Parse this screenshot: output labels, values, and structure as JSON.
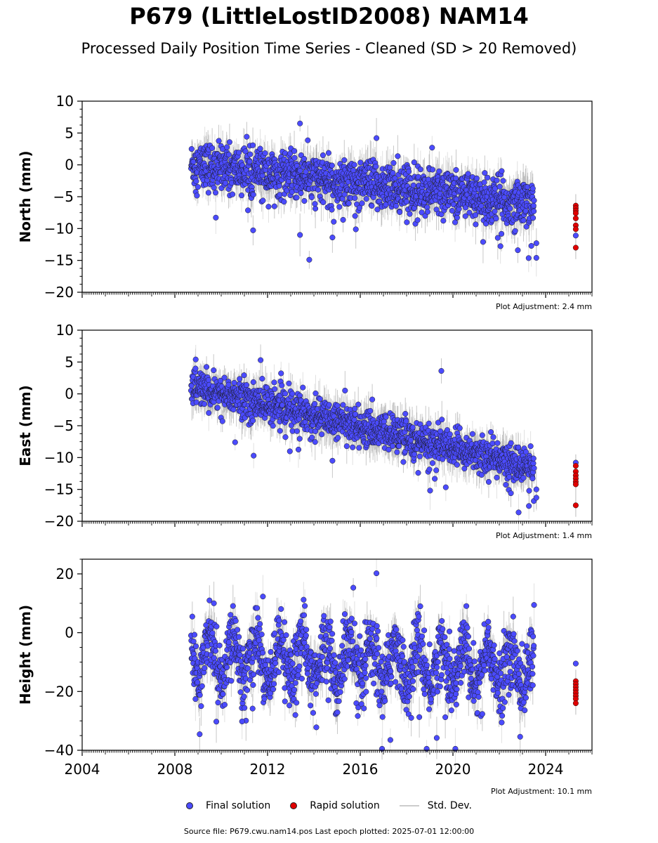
{
  "title": "P679 (LittleLostID2008) NAM14",
  "subtitle": "Processed Daily Position Time Series - Cleaned (SD > 20 Removed)",
  "legend": {
    "final": "Final solution",
    "rapid": "Rapid solution",
    "stddev": "Std. Dev."
  },
  "colors": {
    "final": "#4b4bff",
    "rapid": "#e00000",
    "stddev": "#c8c8c8",
    "edge": "#1a1a1a"
  },
  "source": "Source file: P679.cwu.nam14.pos  Last epoch plotted: 2025-07-01 12:00:00",
  "chart_data": [
    {
      "type": "scatter",
      "panel": "north",
      "ylabel": "North (mm)",
      "ylim": [
        -20,
        10
      ],
      "yticks": [
        -20,
        -15,
        -10,
        -5,
        0,
        5,
        10
      ],
      "xlim": [
        2004,
        2026
      ],
      "xticks": [
        2004,
        2008,
        2012,
        2016,
        2020,
        2024
      ],
      "show_xtick_labels": false,
      "annotation": "Plot Adjustment: 2.4 mm",
      "final": {
        "name": "Final solution",
        "x_start": 2008.7,
        "x_end": 2023.5,
        "y_start": 0.0,
        "y_end": -6.0,
        "scatter": 1.8,
        "outliers": [
          [
            2013.4,
            6.5
          ],
          [
            2013.8,
            -14.9
          ],
          [
            2013.4,
            -11.0
          ],
          [
            2014.8,
            -11.4
          ],
          [
            2016.7,
            4.2
          ],
          [
            2022.8,
            -13.4
          ],
          [
            2023.6,
            -14.6
          ],
          [
            2021.3,
            -12.1
          ],
          [
            2019.1,
            2.7
          ],
          [
            2023.6,
            -12.3
          ]
        ]
      },
      "rapid": {
        "name": "Rapid solution",
        "x": 2025.3,
        "y": [
          -6.4,
          -6.8,
          -7.2,
          -7.6,
          -8.4,
          -9.5,
          -10.1,
          -13.0
        ]
      },
      "rapid_final_point": [
        2025.3,
        -11.1
      ]
    },
    {
      "type": "scatter",
      "panel": "east",
      "ylabel": "East (mm)",
      "ylim": [
        -20,
        10
      ],
      "yticks": [
        -20,
        -15,
        -10,
        -5,
        0,
        5,
        10
      ],
      "xlim": [
        2004,
        2026
      ],
      "xticks": [
        2004,
        2008,
        2012,
        2016,
        2020,
        2024
      ],
      "show_xtick_labels": false,
      "annotation": "Plot Adjustment: 1.4 mm",
      "final": {
        "name": "Final solution",
        "x_start": 2008.7,
        "x_end": 2023.5,
        "y_start": 1.2,
        "y_end": -11.5,
        "scatter": 1.4,
        "outliers": [
          [
            2008.9,
            5.4
          ],
          [
            2011.7,
            5.3
          ],
          [
            2019.5,
            3.6
          ],
          [
            2010.6,
            -7.6
          ],
          [
            2011.4,
            -9.7
          ],
          [
            2014.8,
            -10.5
          ],
          [
            2018.5,
            -12.4
          ],
          [
            2023.6,
            -16.3
          ],
          [
            2023.6,
            -15.0
          ],
          [
            2022.5,
            -15.6
          ]
        ]
      },
      "rapid": {
        "name": "Rapid solution",
        "x": 2025.3,
        "y": [
          -11.3,
          -12.2,
          -12.8,
          -13.3,
          -13.8,
          -14.2,
          -17.5
        ]
      },
      "rapid_final_point": [
        2025.3,
        -10.8
      ]
    },
    {
      "type": "scatter",
      "panel": "height",
      "ylabel": "Height (mm)",
      "ylim": [
        -40,
        25
      ],
      "yticks": [
        -40,
        -20,
        0,
        20
      ],
      "xlim": [
        2004,
        2026
      ],
      "xticks": [
        2004,
        2008,
        2012,
        2016,
        2020,
        2024
      ],
      "show_xtick_labels": true,
      "annotation": "Plot Adjustment: 10.1 mm",
      "final": {
        "name": "Final solution",
        "x_start": 2008.7,
        "x_end": 2023.5,
        "y_start": -8.0,
        "y_end": -12.0,
        "scatter": 5.5,
        "seasonal_amp": 7.0,
        "outliers": [
          [
            2016.7,
            20.2
          ],
          [
            2015.7,
            15.3
          ],
          [
            2011.8,
            12.3
          ],
          [
            2017.3,
            -36.5
          ],
          [
            2019.3,
            -35.8
          ],
          [
            2022.9,
            -35.4
          ],
          [
            2010.9,
            -30.2
          ],
          [
            2013.2,
            -28.0
          ]
        ]
      },
      "rapid": {
        "name": "Rapid solution",
        "x": 2025.3,
        "y": [
          -16.5,
          -17.5,
          -18.5,
          -19.5,
          -20.5,
          -21.5,
          -22.5,
          -24.0
        ]
      },
      "rapid_final_point": [
        2025.3,
        -10.5
      ]
    }
  ]
}
